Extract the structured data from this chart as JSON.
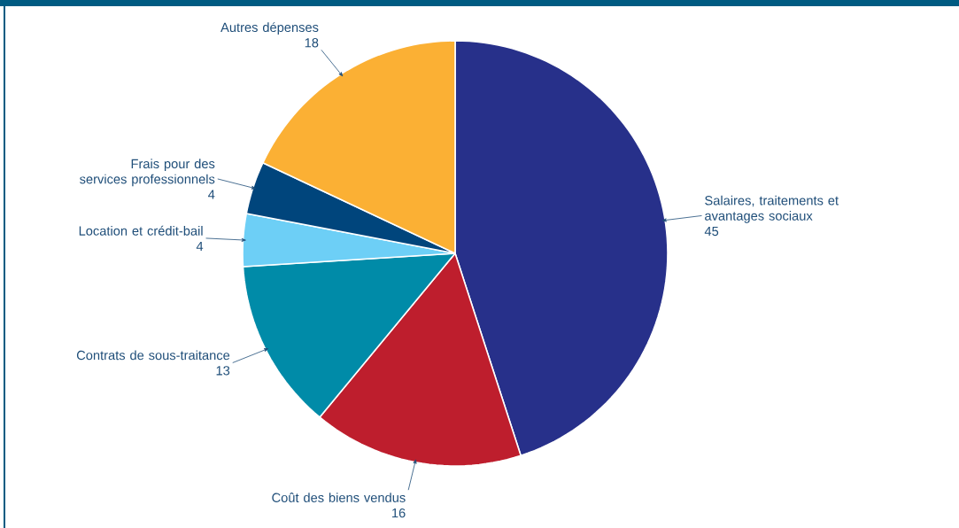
{
  "chart_data": {
    "type": "pie",
    "categories": [
      "Salaires, traitements et avantages sociaux",
      "Coût des biens vendus",
      "Contrats de sous-traitance",
      "Location et crédit-bail",
      "Frais pour des services professionnels",
      "Autres dépenses"
    ],
    "values": [
      45,
      16,
      13,
      4,
      4,
      18
    ],
    "colors": [
      "#27308a",
      "#be1e2d",
      "#008ba8",
      "#6dcff6",
      "#00457c",
      "#fbb034"
    ],
    "data_labels": true
  }
}
